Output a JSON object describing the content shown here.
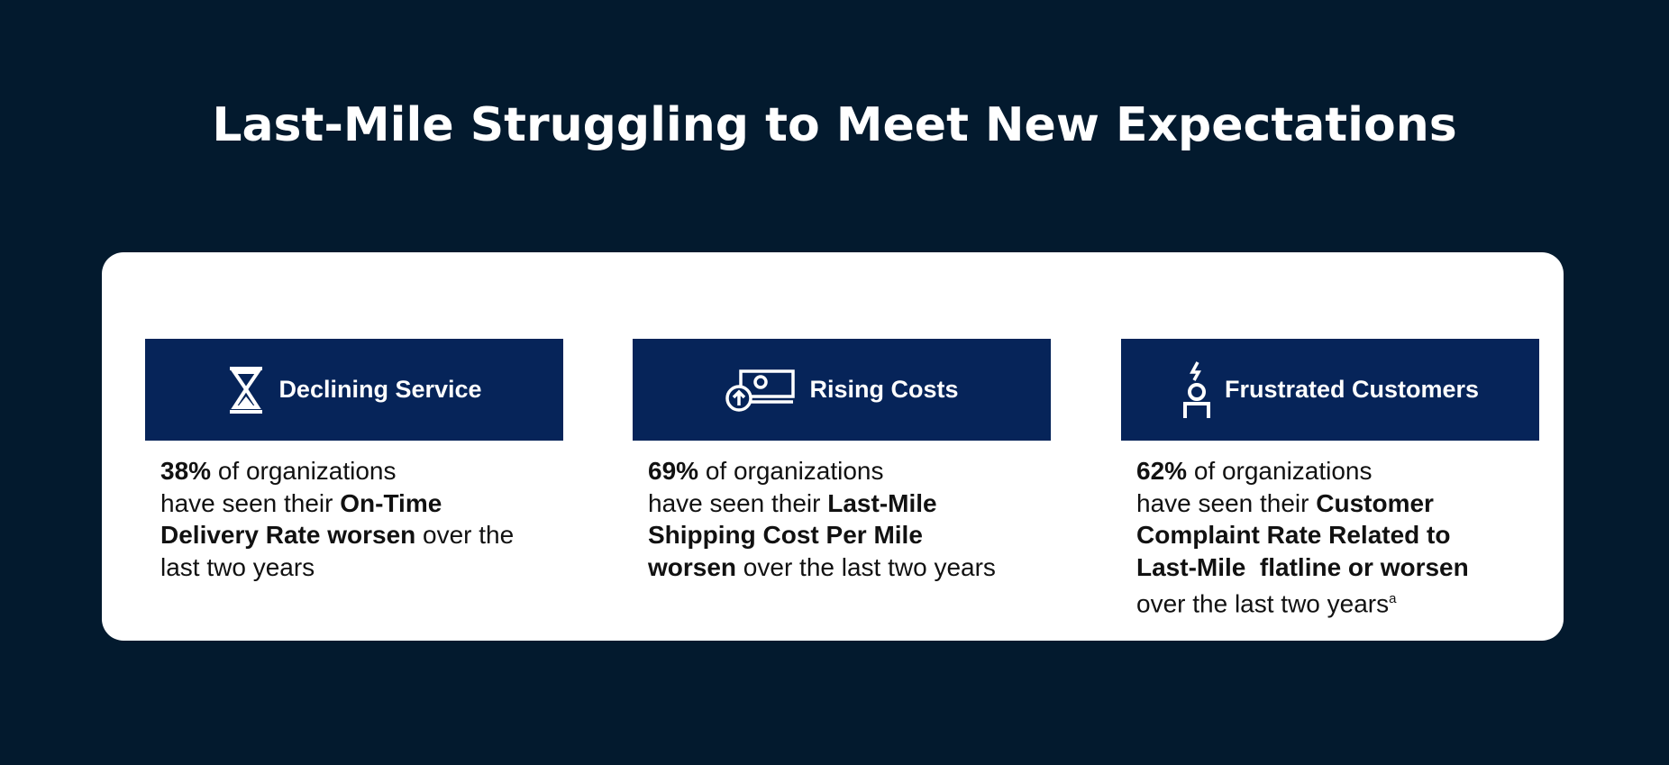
{
  "title": "Last-Mile Struggling to Meet New Expectations",
  "cards": [
    {
      "heading": "Declining Service",
      "lines": [
        [
          {
            "text": "38%",
            "bold": true
          },
          {
            "text": " of organizations"
          }
        ],
        [
          {
            "text": "have seen their "
          },
          {
            "text": "On-Time",
            "bold": true
          }
        ],
        [
          {
            "text": "Delivery Rate worsen",
            "bold": true
          },
          {
            "text": " over the"
          }
        ],
        [
          {
            "text": "last two years"
          }
        ]
      ]
    },
    {
      "heading": "Rising Costs",
      "lines": [
        [
          {
            "text": "69%",
            "bold": true
          },
          {
            "text": " of organizations"
          }
        ],
        [
          {
            "text": "have seen their "
          },
          {
            "text": "Last-Mile",
            "bold": true
          }
        ],
        [
          {
            "text": "Shipping Cost Per Mile",
            "bold": true
          }
        ],
        [
          {
            "text": "worsen",
            "bold": true
          },
          {
            "text": " over the last two years"
          }
        ]
      ]
    },
    {
      "heading": "Frustrated Customers",
      "lines": [
        [
          {
            "text": "62%",
            "bold": true
          },
          {
            "text": " of organizations"
          }
        ],
        [
          {
            "text": "have seen their "
          },
          {
            "text": "Customer",
            "bold": true
          }
        ],
        [
          {
            "text": "Complaint Rate Related to",
            "bold": true
          }
        ],
        [
          {
            "text": "Last-Mile  flatline or worsen",
            "bold": true
          }
        ],
        [
          {
            "text": "over the last two years"
          },
          {
            "text": "a",
            "sup": true
          }
        ]
      ]
    }
  ]
}
